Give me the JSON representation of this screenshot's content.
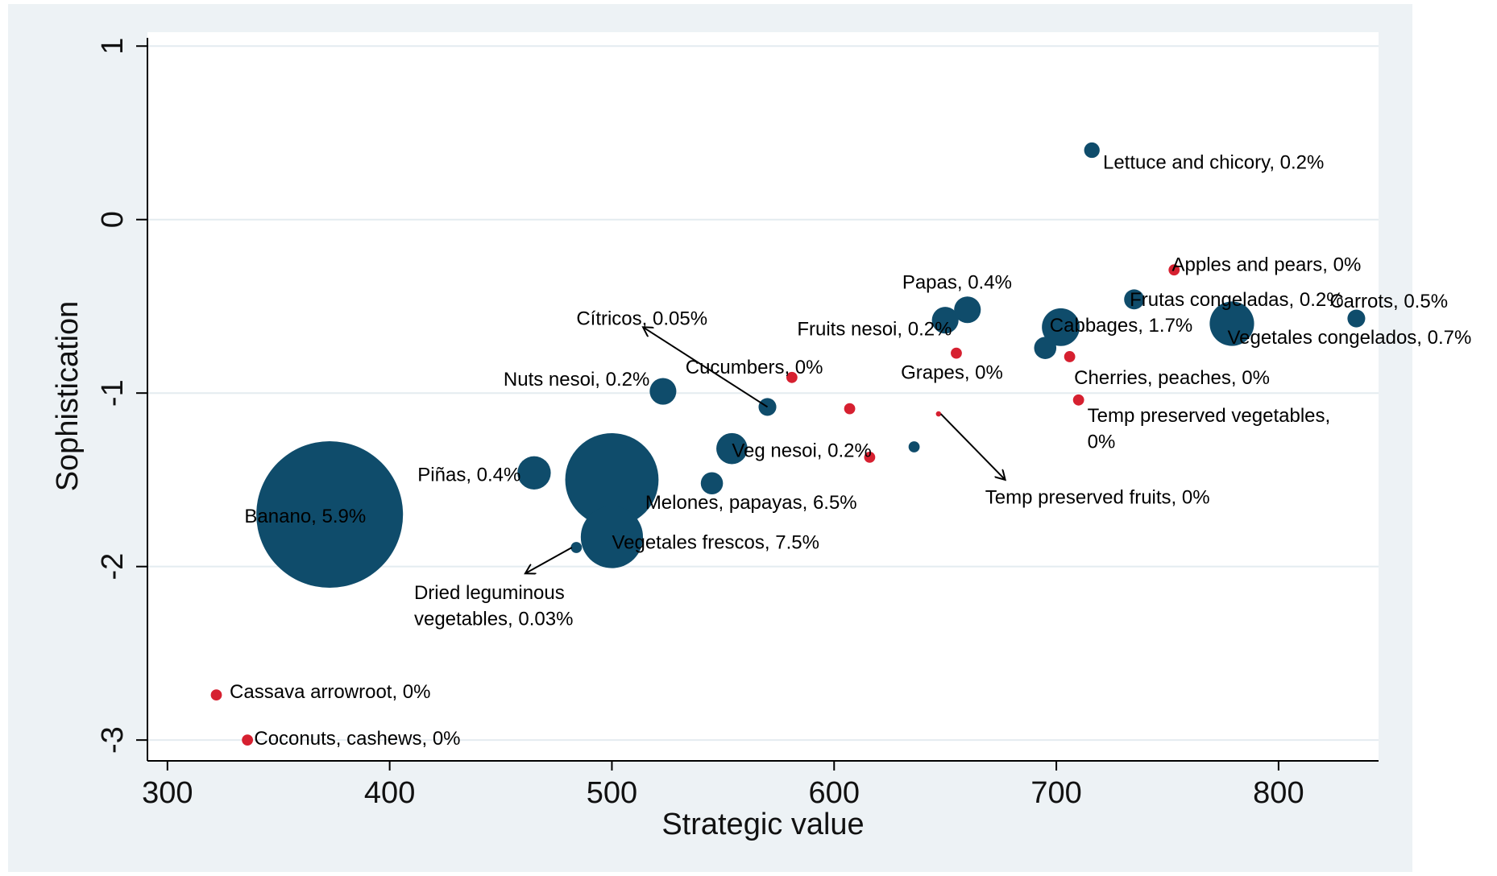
{
  "chart_data": {
    "type": "scatter",
    "title": "",
    "xlabel": "Strategic value",
    "ylabel": "Sophistication",
    "xlim": [
      291,
      845
    ],
    "ylim": [
      -3.12,
      1.08
    ],
    "xticks": [
      300,
      400,
      500,
      600,
      700,
      800
    ],
    "yticks": [
      1,
      0,
      -1,
      -2,
      -3
    ],
    "grid": "horizontal",
    "legend": "none",
    "colors": {
      "outer_background": "#edf2f5",
      "plot_background": "#ffffff",
      "gridline": "#e4ecf0",
      "blue": "#0f4c6b",
      "red": "#d62030"
    },
    "points": [
      {
        "x": 373,
        "y": -1.7,
        "r": 33,
        "color": "blue",
        "label": "Banano, 5.9%",
        "lx": 362,
        "ly": -1.71,
        "anchor": "middle"
      },
      {
        "x": 500,
        "y": -1.5,
        "r": 21,
        "color": "blue",
        "label": "Melones,  papayas, 6.5%",
        "lx": 515,
        "ly": -1.63,
        "anchor": "start"
      },
      {
        "x": 500,
        "y": -1.83,
        "r": 14,
        "color": "blue",
        "label": "Vegetales frescos, 7.5%",
        "lx": 500,
        "ly": -1.86,
        "anchor": "start"
      },
      {
        "x": 465,
        "y": -1.46,
        "r": 7.5,
        "color": "blue",
        "label": "Piñas, 0.4%",
        "lx": 459,
        "ly": -1.47,
        "anchor": "end"
      },
      {
        "x": 523,
        "y": -0.99,
        "r": 6,
        "color": "blue",
        "label": "Nuts nesoi, 0.2%",
        "lx": 517,
        "ly": -0.92,
        "anchor": "end"
      },
      {
        "x": 554,
        "y": -1.32,
        "r": 7,
        "color": "blue",
        "label": "Veg nesoi, 0.2%",
        "lx": 554,
        "ly": -1.33,
        "anchor": "start"
      },
      {
        "x": 545,
        "y": -1.52,
        "r": 5,
        "color": "blue",
        "label": "",
        "lx": 0,
        "ly": 0,
        "anchor": "start"
      },
      {
        "x": 570,
        "y": -1.08,
        "r": 4,
        "color": "blue",
        "label": "",
        "lx": 0,
        "ly": 0,
        "anchor": "start"
      },
      {
        "x": 484,
        "y": -1.89,
        "r": 2.5,
        "color": "blue",
        "label": "",
        "lx": 0,
        "ly": 0,
        "anchor": "start"
      },
      {
        "x": 636,
        "y": -1.31,
        "r": 2.5,
        "color": "blue",
        "label": "",
        "lx": 0,
        "ly": 0,
        "anchor": "start"
      },
      {
        "x": 650,
        "y": -0.58,
        "r": 6,
        "color": "blue",
        "label": "",
        "lx": 0,
        "ly": 0,
        "anchor": "start"
      },
      {
        "x": 660,
        "y": -0.52,
        "r": 6,
        "color": "blue",
        "label": "Papas, 0.4%",
        "lx": 680,
        "ly": -0.36,
        "anchor": "end"
      },
      {
        "x": 702,
        "y": -0.62,
        "r": 8.5,
        "color": "blue",
        "label": "Cabbages, 1.7%",
        "lx": 697,
        "ly": -0.61,
        "anchor": "start"
      },
      {
        "x": 695,
        "y": -0.74,
        "r": 5,
        "color": "blue",
        "label": "",
        "lx": 0,
        "ly": 0,
        "anchor": "start"
      },
      {
        "x": 716,
        "y": 0.4,
        "r": 3.5,
        "color": "blue",
        "label": "Lettuce and chicory, 0.2%",
        "lx": 721,
        "ly": 0.33,
        "anchor": "start"
      },
      {
        "x": 735,
        "y": -0.46,
        "r": 4.5,
        "color": "blue",
        "label": "Frutas congeladas, 0.2%",
        "lx": 733,
        "ly": -0.46,
        "anchor": "start"
      },
      {
        "x": 779,
        "y": -0.6,
        "r": 10,
        "color": "blue",
        "label": "Vegetales congelados, 0.7%",
        "lx": 777,
        "ly": -0.68,
        "anchor": "start"
      },
      {
        "x": 835,
        "y": -0.57,
        "r": 4,
        "color": "blue",
        "label": "Carrots, 0.5%",
        "lx": 823,
        "ly": -0.47,
        "anchor": "start"
      },
      {
        "x": 322,
        "y": -2.74,
        "r": 2.5,
        "color": "red",
        "label": "Cassava arrowroot, 0%",
        "lx": 328,
        "ly": -2.72,
        "anchor": "start"
      },
      {
        "x": 336,
        "y": -3.0,
        "r": 2.5,
        "color": "red",
        "label": "Coconuts, cashews, 0%",
        "lx": 339,
        "ly": -2.99,
        "anchor": "start"
      },
      {
        "x": 581,
        "y": -0.91,
        "r": 2.5,
        "color": "red",
        "label": "Cucumbers, 0%",
        "lx": 595,
        "ly": -0.85,
        "anchor": "end"
      },
      {
        "x": 607,
        "y": -1.09,
        "r": 2.5,
        "color": "red",
        "label": "",
        "lx": 0,
        "ly": 0,
        "anchor": "start"
      },
      {
        "x": 616,
        "y": -1.37,
        "r": 2.5,
        "color": "red",
        "label": "",
        "lx": 0,
        "ly": 0,
        "anchor": "start"
      },
      {
        "x": 647,
        "y": -1.12,
        "r": 1.2,
        "color": "red",
        "label": "",
        "lx": 0,
        "ly": 0,
        "anchor": "start"
      },
      {
        "x": 655,
        "y": -0.77,
        "r": 2.5,
        "color": "red",
        "label": "Grapes, 0%",
        "lx": 676,
        "ly": -0.88,
        "anchor": "end"
      },
      {
        "x": 706,
        "y": -0.79,
        "r": 2.5,
        "color": "red",
        "label": "Cherries, peaches, 0%",
        "lx": 708,
        "ly": -0.91,
        "anchor": "start"
      },
      {
        "x": 710,
        "y": -1.04,
        "r": 2.5,
        "color": "red",
        "label": "",
        "lx": 0,
        "ly": 0,
        "anchor": "start"
      },
      {
        "x": 753,
        "y": -0.29,
        "r": 2.5,
        "color": "red",
        "label": "Apples and pears, 0%",
        "lx": 752,
        "ly": -0.26,
        "anchor": "start"
      }
    ],
    "annotations": [
      {
        "text": "Cítricos, 0.05%",
        "x": 543,
        "y": -0.57,
        "anchor": "end"
      },
      {
        "text": "Fruits nesoi, 0.2%",
        "x": 653,
        "y": -0.63,
        "anchor": "end"
      },
      {
        "text": "Temp preserved vegetables,",
        "x": 714,
        "y": -1.13,
        "anchor": "start"
      },
      {
        "text": "0%",
        "x": 714,
        "y": -1.28,
        "anchor": "start"
      },
      {
        "text": "Temp preserved fruits, 0%",
        "x": 668,
        "y": -1.6,
        "anchor": "start"
      },
      {
        "text": "Dried leguminous",
        "x": 411,
        "y": -2.15,
        "anchor": "start"
      },
      {
        "text": "vegetables, 0.03%",
        "x": 411,
        "y": -2.3,
        "anchor": "start"
      }
    ],
    "arrows": [
      {
        "from": [
          570,
          -1.08
        ],
        "to": [
          514,
          -0.62
        ]
      },
      {
        "from": [
          648,
          -1.12
        ],
        "to": [
          677,
          -1.5
        ]
      },
      {
        "from": [
          482,
          -1.89
        ],
        "to": [
          461,
          -2.04
        ]
      }
    ]
  }
}
